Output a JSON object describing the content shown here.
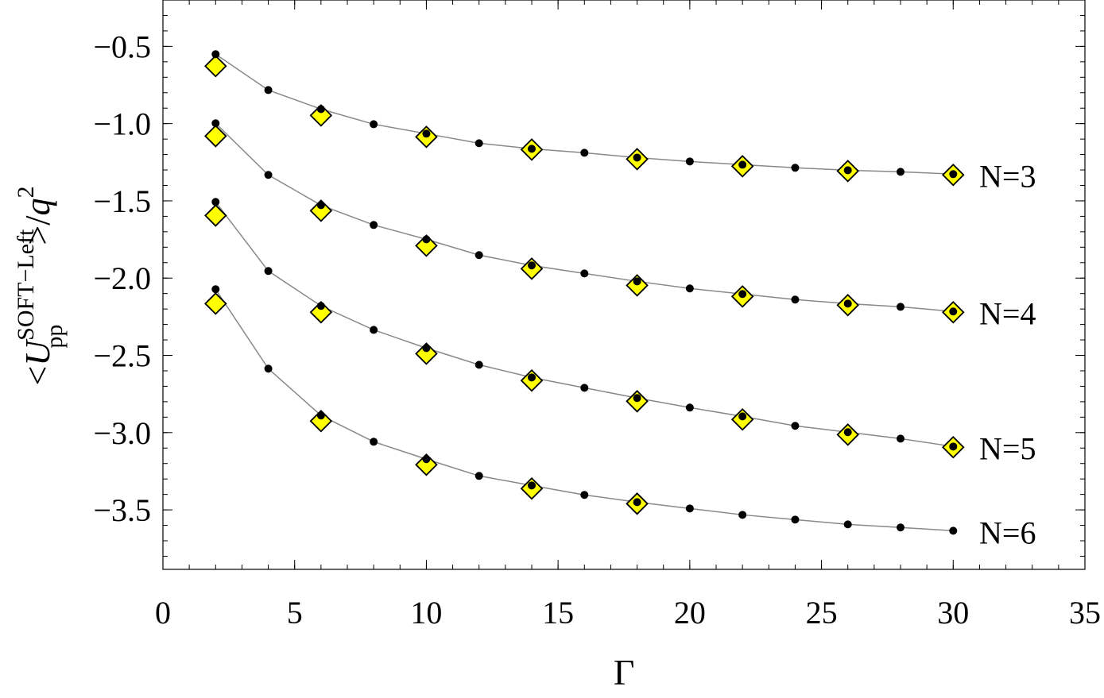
{
  "chart_data": {
    "type": "scatter",
    "xlabel": "Γ",
    "ylabel": {
      "open": "<",
      "symbol": "U",
      "sub": "pp",
      "sup": "SOFT−Left",
      "close": ">/",
      "q": "q",
      "power": "2"
    },
    "xlim": [
      0,
      35
    ],
    "ylim": [
      -3.885,
      -0.2
    ],
    "xticks": [
      0,
      5,
      10,
      15,
      20,
      25,
      30,
      35
    ],
    "yticks": [
      {
        "value": -3.5,
        "label": "−3.5"
      },
      {
        "value": -3.0,
        "label": "−3.0"
      },
      {
        "value": -2.5,
        "label": "−2.5"
      },
      {
        "value": -2.0,
        "label": "−2.0"
      },
      {
        "value": -1.5,
        "label": "−1.5"
      },
      {
        "value": -1.0,
        "label": "−1.0"
      },
      {
        "value": -0.5,
        "label": "−0.5"
      }
    ],
    "line_color": "#888888",
    "series": [
      {
        "name": "N=3",
        "color": "#000000",
        "x": [
          2,
          4,
          6,
          8,
          10,
          12,
          14,
          16,
          18,
          20,
          22,
          24,
          26,
          28,
          30
        ],
        "values": [
          -0.551,
          -0.783,
          -0.906,
          -1.004,
          -1.065,
          -1.127,
          -1.163,
          -1.189,
          -1.22,
          -1.245,
          -1.266,
          -1.286,
          -1.302,
          -1.312,
          -1.327
        ]
      },
      {
        "name": "N=4",
        "color": "#000000",
        "x": [
          2,
          4,
          6,
          8,
          10,
          12,
          14,
          16,
          18,
          20,
          22,
          24,
          26,
          28,
          30
        ],
        "values": [
          -0.998,
          -1.332,
          -1.528,
          -1.656,
          -1.749,
          -1.851,
          -1.918,
          -1.97,
          -2.021,
          -2.067,
          -2.103,
          -2.139,
          -2.165,
          -2.186,
          -2.216
        ]
      },
      {
        "name": "N=5",
        "color": "#000000",
        "x": [
          2,
          4,
          6,
          8,
          10,
          12,
          14,
          16,
          18,
          20,
          22,
          24,
          26,
          28,
          30
        ],
        "values": [
          -1.507,
          -1.954,
          -2.18,
          -2.335,
          -2.453,
          -2.561,
          -2.643,
          -2.71,
          -2.776,
          -2.838,
          -2.895,
          -2.956,
          -2.997,
          -3.039,
          -3.09
        ]
      },
      {
        "name": "N=6",
        "color": "#000000",
        "x": [
          2,
          4,
          6,
          8,
          10,
          12,
          14,
          16,
          18,
          20,
          22,
          24,
          26,
          28,
          30
        ],
        "values": [
          -2.072,
          -2.586,
          -2.889,
          -3.059,
          -3.172,
          -3.28,
          -3.342,
          -3.403,
          -3.45,
          -3.491,
          -3.532,
          -3.563,
          -3.594,
          -3.614,
          -3.635
        ]
      }
    ],
    "diamond_series": [
      {
        "color": "#ffff00",
        "x": [
          2,
          6,
          10,
          14,
          18,
          22,
          26,
          30
        ],
        "values": [
          -0.628,
          -0.947,
          -1.086,
          -1.168,
          -1.23,
          -1.276,
          -1.307,
          -1.332
        ]
      },
      {
        "color": "#ffff00",
        "x": [
          2,
          6,
          10,
          14,
          18,
          22,
          26,
          30
        ],
        "values": [
          -1.081,
          -1.564,
          -1.79,
          -1.939,
          -2.047,
          -2.119,
          -2.175,
          -2.221
        ]
      },
      {
        "color": "#ffff00",
        "x": [
          2,
          6,
          10,
          14,
          18,
          22,
          26,
          30
        ],
        "values": [
          -1.595,
          -2.221,
          -2.489,
          -2.663,
          -2.797,
          -2.915,
          -3.013,
          -3.095
        ]
      },
      {
        "color": "#ffff00",
        "x": [
          2,
          6,
          10,
          14,
          18
        ],
        "values": [
          -2.165,
          -2.925,
          -3.208,
          -3.362,
          -3.46
        ]
      }
    ]
  }
}
